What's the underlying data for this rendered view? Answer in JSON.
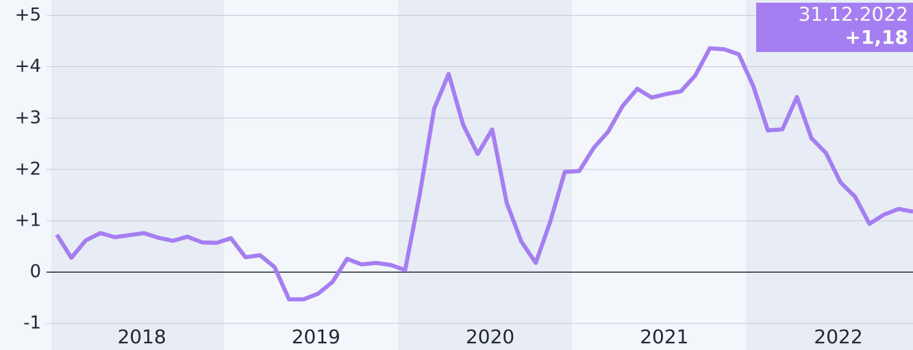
{
  "chart_data": {
    "type": "line",
    "categories": [
      null,
      null,
      null,
      null,
      null,
      null,
      "2018",
      null,
      null,
      null,
      null,
      null,
      null,
      null,
      null,
      null,
      null,
      null,
      "2019",
      null,
      null,
      null,
      null,
      null,
      null,
      null,
      null,
      null,
      null,
      null,
      "2020",
      null,
      null,
      null,
      null,
      null,
      null,
      null,
      null,
      null,
      null,
      null,
      "2021",
      null,
      null,
      null,
      null,
      null,
      null,
      null,
      null,
      null,
      null,
      null,
      "2022",
      null,
      null,
      null,
      null,
      null
    ],
    "values": [
      0.73,
      0.28,
      0.62,
      0.76,
      0.68,
      0.72,
      0.76,
      0.67,
      0.61,
      0.69,
      0.58,
      0.57,
      0.66,
      0.29,
      0.33,
      0.1,
      -0.53,
      -0.53,
      -0.42,
      -0.19,
      0.26,
      0.15,
      0.18,
      0.14,
      0.04,
      1.5,
      3.18,
      3.86,
      2.87,
      2.3,
      2.78,
      1.35,
      0.6,
      0.18,
      0.98,
      1.95,
      1.97,
      2.42,
      2.74,
      3.24,
      3.57,
      3.4,
      3.47,
      3.52,
      3.83,
      4.36,
      4.34,
      4.24,
      3.62,
      2.76,
      2.78,
      3.41,
      2.61,
      2.32,
      1.75,
      1.47,
      0.94,
      1.12,
      1.23,
      1.18
    ],
    "color": "#a57ef2",
    "ylim": [
      -1.33,
      5.3
    ],
    "yticks": [
      {
        "value": -1,
        "label": "-1"
      },
      0,
      {
        "value": 1,
        "label": "+1"
      },
      {
        "value": 2,
        "label": "+2"
      },
      {
        "value": 3,
        "label": "+3"
      },
      {
        "value": 4,
        "label": "+4"
      },
      {
        "value": 5,
        "label": "+5"
      }
    ],
    "grid": true,
    "annotation": {
      "date": "31.12.2022",
      "label": "+1,18"
    }
  }
}
